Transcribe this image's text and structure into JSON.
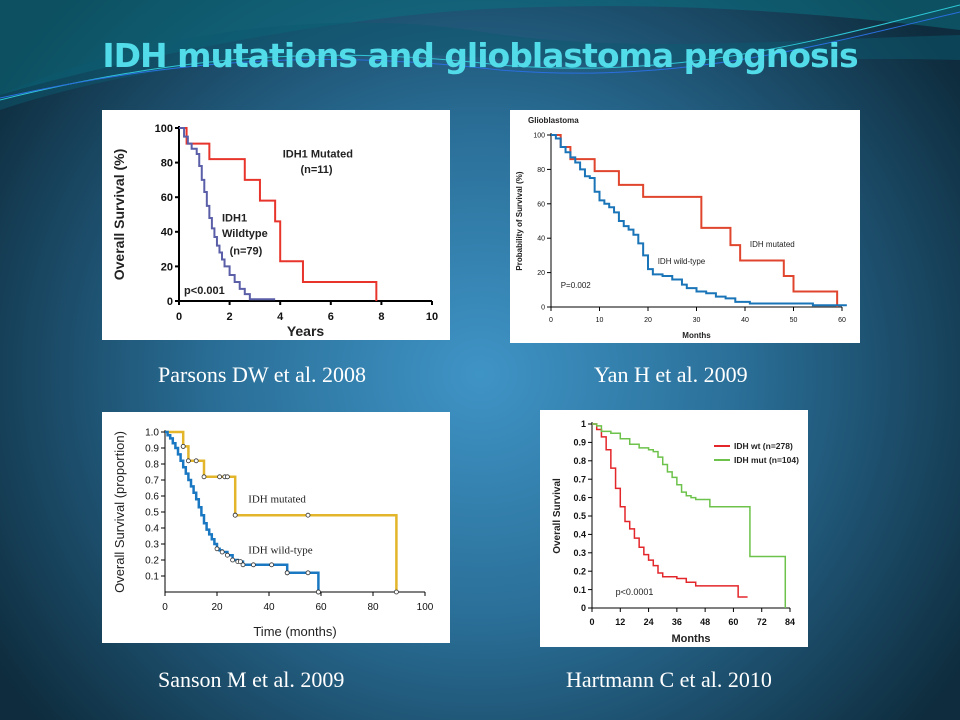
{
  "slide": {
    "title": "IDH mutations and glioblastoma prognosis",
    "captions": [
      "Parsons DW et al. 2008",
      "Yan H et al. 2009",
      "Sanson M et al. 2009",
      "Hartmann C et al. 2010"
    ],
    "colors": {
      "title": "#52dbe8",
      "caption": "#ffffff"
    }
  },
  "chart_data": [
    {
      "type": "line",
      "step": true,
      "title": "",
      "xlabel": "Years",
      "ylabel": "Overall Survival (%)",
      "xlim": [
        0,
        10
      ],
      "ylim": [
        0,
        100
      ],
      "xticks": [
        0,
        2,
        4,
        6,
        8,
        10
      ],
      "yticks": [
        0,
        20,
        40,
        60,
        80,
        100
      ],
      "grid": false,
      "annotations": [
        {
          "text": "IDH1 Mutated",
          "x": 4.1,
          "y": 83
        },
        {
          "text": "(n=11)",
          "x": 4.8,
          "y": 74
        },
        {
          "text": "IDH1",
          "x": 1.7,
          "y": 46
        },
        {
          "text": "Wildtype",
          "x": 1.7,
          "y": 37
        },
        {
          "text": "(n=79)",
          "x": 2.0,
          "y": 27
        },
        {
          "text": "p<0.001",
          "x": 0.2,
          "y": 4
        }
      ],
      "series": [
        {
          "name": "IDH1 Mutated",
          "color": "#e8352c",
          "x": [
            0,
            0.3,
            1.2,
            2.6,
            3.2,
            3.8,
            4.0,
            4.9,
            7.8
          ],
          "y": [
            100,
            91,
            82,
            70,
            58,
            46,
            23,
            11,
            0
          ]
        },
        {
          "name": "IDH1 Wildtype",
          "color": "#5a5fa8",
          "x": [
            0,
            0.2,
            0.35,
            0.5,
            0.7,
            0.8,
            0.9,
            1.0,
            1.1,
            1.2,
            1.3,
            1.4,
            1.5,
            1.6,
            1.7,
            1.8,
            2.0,
            2.2,
            2.4,
            2.6,
            2.8,
            3.8
          ],
          "y": [
            100,
            95,
            91,
            88,
            85,
            78,
            70,
            63,
            55,
            48,
            42,
            37,
            32,
            28,
            24,
            20,
            15,
            11,
            7,
            4,
            1,
            1
          ]
        }
      ]
    },
    {
      "type": "line",
      "step": true,
      "title": "Glioblastoma",
      "xlabel": "Months",
      "ylabel": "Probability of Survival (%)",
      "xlim": [
        0,
        60
      ],
      "ylim": [
        0,
        100
      ],
      "xticks": [
        0,
        10,
        20,
        30,
        40,
        50,
        60
      ],
      "yticks": [
        0,
        20,
        40,
        60,
        80,
        100
      ],
      "grid": false,
      "annotations": [
        {
          "text": "IDH mutated",
          "x": 41,
          "y": 35
        },
        {
          "text": "IDH wild-type",
          "x": 22,
          "y": 25
        },
        {
          "text": "P=0.002",
          "x": 2,
          "y": 11
        }
      ],
      "series": [
        {
          "name": "IDH mutated",
          "color": "#e0452d",
          "x": [
            0,
            2,
            4,
            9,
            14,
            19,
            31,
            37,
            39,
            48,
            50,
            59
          ],
          "y": [
            100,
            93,
            86,
            79,
            71,
            64,
            46,
            36,
            27,
            18,
            9,
            0
          ]
        },
        {
          "name": "IDH wild-type",
          "color": "#1a74b8",
          "x": [
            0,
            1,
            2,
            3,
            4,
            5,
            6,
            7,
            8,
            9,
            10,
            11,
            12,
            13,
            14,
            15,
            16,
            17,
            18,
            19,
            20,
            21,
            23,
            25,
            27,
            28,
            30,
            32,
            34,
            36,
            38,
            41,
            54,
            61
          ],
          "y": [
            100,
            98,
            93,
            90,
            87,
            84,
            80,
            76,
            75,
            67,
            62,
            60,
            58,
            55,
            50,
            47,
            45,
            42,
            37,
            30,
            22,
            19,
            18,
            16,
            13,
            11,
            9,
            8,
            6,
            5,
            3,
            2,
            1,
            1
          ]
        }
      ]
    },
    {
      "type": "line",
      "step": true,
      "title": "",
      "xlabel": "Time (months)",
      "ylabel": "Overall Survival (proportion)",
      "xlim": [
        0,
        100
      ],
      "ylim": [
        0,
        1.0
      ],
      "xticks": [
        0,
        20,
        40,
        60,
        80,
        100
      ],
      "yticks": [
        0.1,
        0.2,
        0.3,
        0.4,
        0.5,
        0.6,
        0.7,
        0.8,
        0.9,
        1.0
      ],
      "grid": false,
      "annotations": [
        {
          "text": "IDH mutated",
          "x": 32,
          "y": 0.56
        },
        {
          "text": "IDH wild-type",
          "x": 32,
          "y": 0.24
        }
      ],
      "series": [
        {
          "name": "IDH mutated",
          "color": "#e2b52a",
          "x": [
            0,
            7,
            9,
            15,
            27,
            89
          ],
          "y": [
            1.0,
            0.91,
            0.82,
            0.72,
            0.48,
            0.0
          ],
          "censored_x": [
            7,
            7,
            9,
            12,
            15,
            21,
            23,
            24,
            27,
            27,
            55,
            89
          ]
        },
        {
          "name": "IDH wild-type",
          "color": "#1a78c2",
          "x": [
            0,
            1,
            2,
            3,
            4,
            5,
            6,
            7,
            8,
            9,
            10,
            11,
            12,
            13,
            14,
            15,
            16,
            17,
            18,
            19,
            20,
            21,
            22,
            24,
            26,
            28,
            30,
            47,
            59
          ],
          "y": [
            1.0,
            0.98,
            0.96,
            0.93,
            0.9,
            0.86,
            0.82,
            0.78,
            0.74,
            0.7,
            0.66,
            0.62,
            0.58,
            0.53,
            0.48,
            0.43,
            0.39,
            0.36,
            0.33,
            0.3,
            0.27,
            0.26,
            0.25,
            0.23,
            0.2,
            0.19,
            0.17,
            0.12,
            0.0
          ],
          "censored_x": [
            20,
            22,
            24,
            26,
            28,
            29,
            30,
            34,
            41,
            47,
            47,
            55,
            59,
            59
          ]
        }
      ]
    },
    {
      "type": "line",
      "step": true,
      "title": "",
      "xlabel": "Months",
      "ylabel": "Overall Survival",
      "xlim": [
        0,
        84
      ],
      "ylim": [
        0,
        1
      ],
      "xticks": [
        0,
        12,
        24,
        36,
        48,
        60,
        72,
        84
      ],
      "yticks": [
        0,
        0.1,
        0.2,
        0.3,
        0.4,
        0.5,
        0.6,
        0.7,
        0.8,
        0.9,
        1
      ],
      "grid": false,
      "legend": {
        "position": "top-right",
        "entries": [
          "IDH wt (n=278)",
          "IDH mut (n=104)"
        ]
      },
      "annotations": [
        {
          "text": "p<0.0001",
          "x": 10,
          "y": 0.07
        }
      ],
      "series": [
        {
          "name": "IDH wt (n=278)",
          "color": "#e3262a",
          "x": [
            0,
            2,
            4,
            6,
            8,
            10,
            12,
            14,
            16,
            18,
            20,
            22,
            24,
            26,
            28,
            30,
            33,
            36,
            40,
            44,
            62,
            66
          ],
          "y": [
            1.0,
            0.97,
            0.93,
            0.86,
            0.76,
            0.65,
            0.55,
            0.47,
            0.43,
            0.38,
            0.33,
            0.29,
            0.26,
            0.23,
            0.19,
            0.17,
            0.17,
            0.16,
            0.14,
            0.12,
            0.06,
            0.06
          ]
        },
        {
          "name": "IDH mut (n=104)",
          "color": "#6cc24a",
          "x": [
            0,
            2,
            4,
            8,
            12,
            16,
            20,
            24,
            26,
            28,
            30,
            32,
            34,
            36,
            38,
            40,
            42,
            44,
            50,
            67,
            82
          ],
          "y": [
            1.0,
            0.99,
            0.96,
            0.95,
            0.92,
            0.89,
            0.87,
            0.86,
            0.85,
            0.82,
            0.78,
            0.74,
            0.71,
            0.67,
            0.63,
            0.61,
            0.6,
            0.59,
            0.55,
            0.28,
            0.0
          ]
        }
      ]
    }
  ]
}
